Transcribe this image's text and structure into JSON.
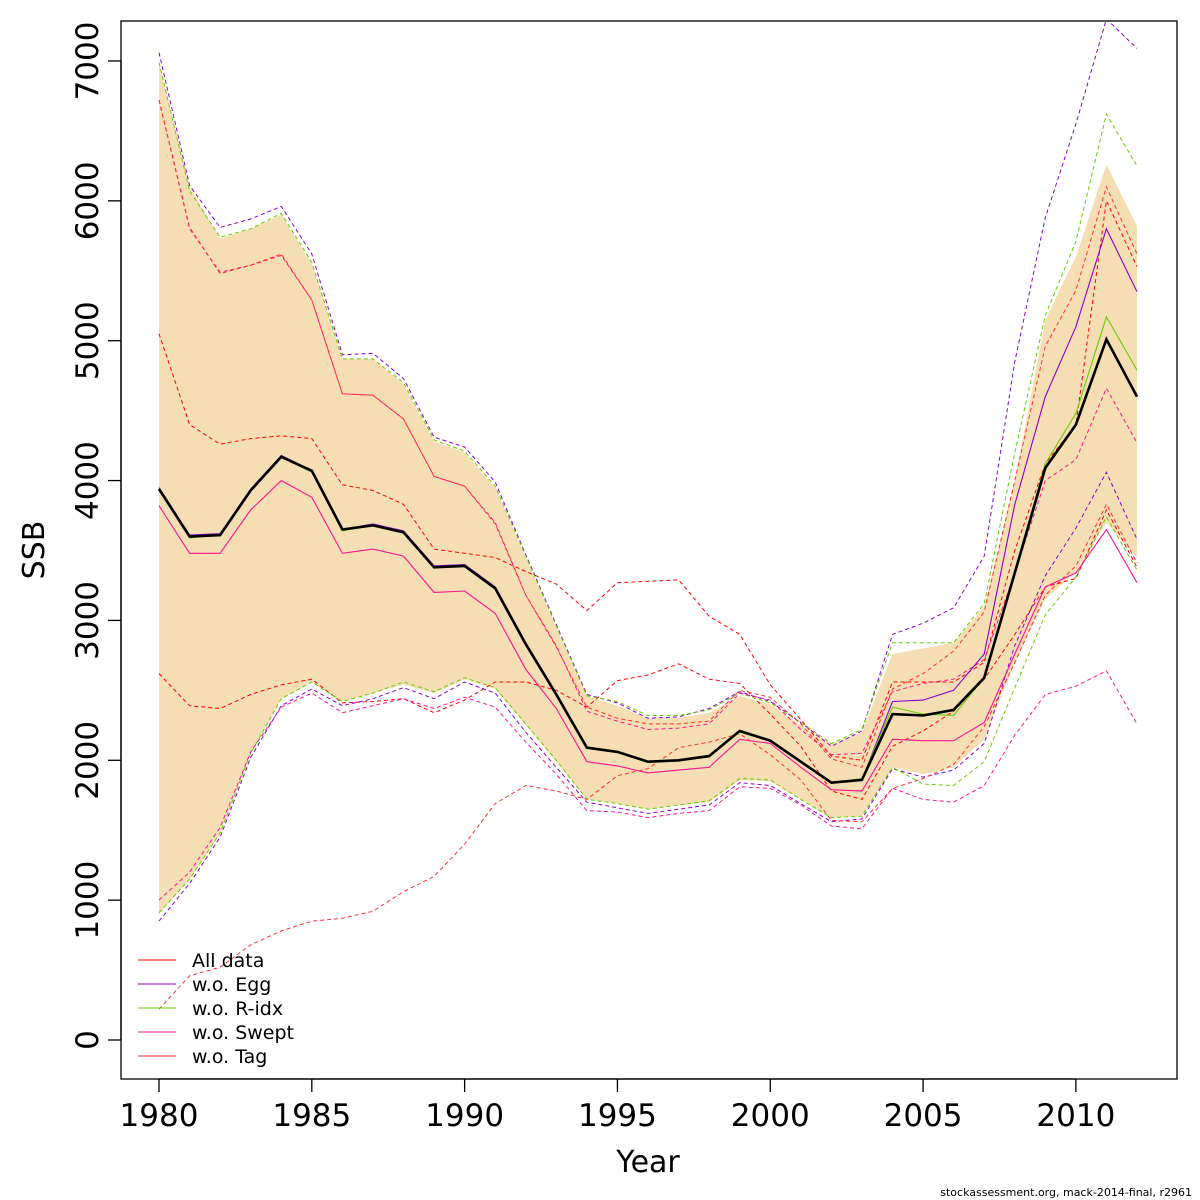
{
  "chart_data": {
    "type": "line",
    "xlabel": "Year",
    "ylabel": "SSB",
    "xlim": [
      1980,
      2012
    ],
    "ylim": [
      0,
      7300
    ],
    "x_ticks": [
      1980,
      1985,
      1990,
      1995,
      2000,
      2005,
      2010
    ],
    "y_ticks": [
      0,
      1000,
      2000,
      3000,
      4000,
      5000,
      6000,
      7000
    ],
    "x": [
      1980,
      1981,
      1982,
      1983,
      1984,
      1985,
      1986,
      1987,
      1988,
      1989,
      1990,
      1991,
      1992,
      1993,
      1994,
      1995,
      1996,
      1997,
      1998,
      1999,
      2000,
      2001,
      2002,
      2003,
      2004,
      2005,
      2006,
      2007,
      2008,
      2009,
      2010,
      2011,
      2012
    ],
    "band": {
      "color": "#F5DEB3",
      "lower": [
        900,
        1150,
        1480,
        2050,
        2440,
        2560,
        2420,
        2480,
        2540,
        2480,
        2580,
        2510,
        2250,
        1990,
        1720,
        1690,
        1650,
        1680,
        1700,
        1860,
        1850,
        1720,
        1590,
        1600,
        1950,
        1900,
        1950,
        2150,
        2700,
        3150,
        3350,
        3700,
        3450
      ],
      "upper": [
        6980,
        6100,
        5730,
        5800,
        5900,
        5550,
        4870,
        4870,
        4690,
        4280,
        4200,
        3950,
        3450,
        2950,
        2460,
        2390,
        2300,
        2300,
        2340,
        2460,
        2400,
        2250,
        2120,
        2200,
        2760,
        2800,
        2840,
        3100,
        4000,
        5150,
        5600,
        6260,
        5820
      ]
    },
    "series": [
      {
        "name": "All data",
        "role": "ci",
        "color": "#FF0000",
        "ci_color": "#FF0000",
        "values": [
          3940,
          3600,
          3610,
          3930,
          4170,
          4070,
          3650,
          3680,
          3630,
          3380,
          3390,
          3230,
          2830,
          2470,
          2090,
          2060,
          1990,
          2000,
          2030,
          2210,
          2140,
          1990,
          1840,
          1860,
          2330,
          2320,
          2360,
          2590,
          3340,
          4090,
          4400,
          5010,
          4600
        ],
        "lower": [
          2620,
          2390,
          2370,
          2470,
          2540,
          2580,
          2410,
          2420,
          2440,
          2340,
          2430,
          2560,
          2560,
          2500,
          2380,
          2570,
          2610,
          2690,
          2580,
          2550,
          2330,
          2100,
          1780,
          1720,
          2100,
          2210,
          2350,
          2580,
          2900,
          3240,
          3300,
          3790,
          3380
        ],
        "upper": [
          5050,
          4400,
          4260,
          4300,
          4320,
          4300,
          3970,
          3930,
          3830,
          3510,
          3480,
          3450,
          3350,
          3260,
          3070,
          3270,
          3280,
          3290,
          3030,
          2900,
          2540,
          2290,
          2030,
          2000,
          2560,
          2560,
          2560,
          2700,
          3500,
          4120,
          4400,
          6000,
          5530
        ]
      },
      {
        "name": "w.o. Egg",
        "color": "#8B00CC",
        "values": [
          3950,
          3610,
          3620,
          3940,
          4180,
          4070,
          3650,
          3690,
          3640,
          3390,
          3400,
          3240,
          2840,
          2480,
          2090,
          2060,
          1990,
          2000,
          2030,
          2210,
          2140,
          1990,
          1840,
          1860,
          2420,
          2430,
          2500,
          2760,
          3830,
          4600,
          5100,
          5800,
          5350
        ],
        "lower": [
          850,
          1120,
          1450,
          2020,
          2390,
          2510,
          2390,
          2440,
          2520,
          2440,
          2560,
          2480,
          2200,
          1950,
          1700,
          1660,
          1620,
          1650,
          1680,
          1840,
          1820,
          1690,
          1560,
          1580,
          1940,
          1880,
          1930,
          2120,
          2820,
          3320,
          3660,
          4060,
          3580
        ],
        "upper": [
          7060,
          6110,
          5810,
          5870,
          5960,
          5620,
          4900,
          4910,
          4730,
          4310,
          4240,
          3990,
          3470,
          2970,
          2470,
          2410,
          2300,
          2310,
          2370,
          2490,
          2420,
          2270,
          2100,
          2210,
          2900,
          2980,
          3090,
          3460,
          4850,
          5880,
          6550,
          7300,
          7090
        ]
      },
      {
        "name": "w.o. R-idx",
        "color": "#66CC00",
        "values": [
          3940,
          3590,
          3610,
          3930,
          4170,
          4060,
          3640,
          3680,
          3630,
          3380,
          3390,
          3230,
          2830,
          2470,
          2090,
          2060,
          1990,
          2000,
          2030,
          2200,
          2140,
          1990,
          1840,
          1870,
          2380,
          2330,
          2320,
          2590,
          3360,
          4120,
          4480,
          5170,
          4790
        ],
        "lower": [
          910,
          1150,
          1480,
          2050,
          2440,
          2560,
          2420,
          2480,
          2560,
          2490,
          2590,
          2520,
          2260,
          2000,
          1720,
          1690,
          1650,
          1680,
          1710,
          1870,
          1860,
          1720,
          1590,
          1600,
          1950,
          1830,
          1820,
          1990,
          2520,
          3040,
          3310,
          3740,
          3360
        ],
        "upper": [
          6990,
          6070,
          5740,
          5800,
          5910,
          5560,
          4870,
          4870,
          4700,
          4290,
          4210,
          3960,
          3460,
          2960,
          2460,
          2420,
          2320,
          2320,
          2360,
          2480,
          2410,
          2270,
          2120,
          2220,
          2840,
          2840,
          2840,
          3120,
          4200,
          5180,
          5710,
          6620,
          6250
        ]
      },
      {
        "name": "w.o. Swept",
        "color": "#FF1493",
        "values": [
          3820,
          3480,
          3480,
          3790,
          4000,
          3880,
          3480,
          3510,
          3460,
          3200,
          3210,
          3050,
          2650,
          2370,
          1990,
          1960,
          1910,
          1930,
          1950,
          2150,
          2120,
          1950,
          1790,
          1780,
          2150,
          2140,
          2140,
          2270,
          2760,
          3240,
          3340,
          3650,
          3270
        ],
        "lower": [
          1000,
          1200,
          1520,
          2060,
          2380,
          2480,
          2340,
          2390,
          2440,
          2370,
          2450,
          2380,
          2130,
          1900,
          1640,
          1630,
          1590,
          1620,
          1640,
          1810,
          1800,
          1680,
          1530,
          1510,
          1800,
          1720,
          1700,
          1820,
          2180,
          2470,
          2530,
          2640,
          2260
        ],
        "upper": [
          6720,
          5800,
          5490,
          5540,
          5610,
          5290,
          4620,
          4610,
          4440,
          4030,
          3960,
          3700,
          3180,
          2820,
          2350,
          2280,
          2220,
          2230,
          2260,
          2480,
          2430,
          2220,
          2040,
          2050,
          2490,
          2550,
          2580,
          2720,
          3340,
          4000,
          4150,
          4660,
          4270
        ]
      },
      {
        "name": "w.o. Tag",
        "color": "#FF3030",
        "values": [
          3940,
          3600,
          3610,
          3930,
          4170,
          4070,
          3650,
          3680,
          3630,
          3380,
          3390,
          3230,
          2830,
          2470,
          2090,
          2060,
          1990,
          2000,
          2030,
          2210,
          2140,
          1990,
          1840,
          1860,
          2330,
          2320,
          2360,
          2590,
          3340,
          4090,
          4400,
          5010,
          4600
        ],
        "lower": [
          220,
          460,
          520,
          680,
          780,
          850,
          870,
          920,
          1060,
          1170,
          1400,
          1690,
          1820,
          1780,
          1720,
          1890,
          1940,
          2090,
          2130,
          2190,
          2040,
          1860,
          1570,
          1560,
          1800,
          1870,
          1970,
          2240,
          2700,
          3180,
          3390,
          3830,
          3410
        ],
        "upper": [
          6720,
          5810,
          5480,
          5540,
          5620,
          5290,
          4620,
          4610,
          4440,
          4030,
          3960,
          3690,
          3180,
          2810,
          2380,
          2300,
          2260,
          2260,
          2280,
          2500,
          2450,
          2260,
          2010,
          1950,
          2510,
          2620,
          2780,
          3060,
          4000,
          4960,
          5360,
          6100,
          5620
        ]
      }
    ],
    "legend": {
      "placement": "bottom-left",
      "entries": [
        "All data",
        "w.o. Egg",
        "w.o. R-idx",
        "w.o. Swept",
        "w.o. Tag"
      ]
    },
    "grid": false
  },
  "footer": {
    "credit": "stockassessment.org, mack-2014-final, r2961"
  }
}
